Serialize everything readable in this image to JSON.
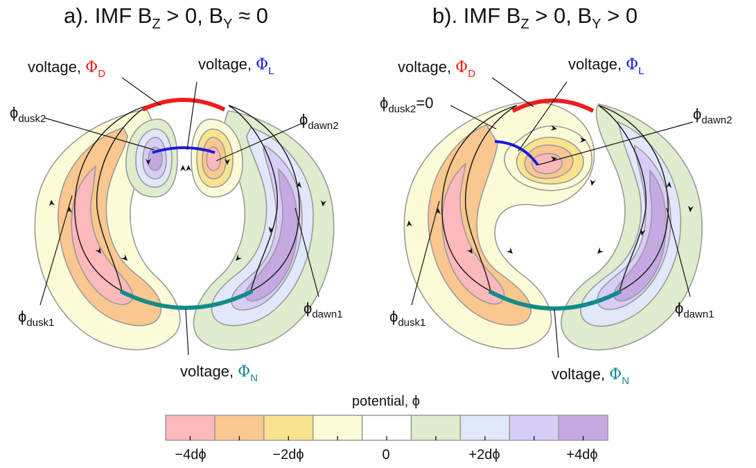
{
  "panels": [
    {
      "title_main": "a). IMF B",
      "title_sub1": "Z",
      "title_mid": " > 0, B",
      "title_sub2": "Y",
      "title_end": " ≈ 0",
      "voltage_d_prefix": "voltage, ",
      "voltage_d_symbol": "Φ",
      "voltage_d_sub": "D",
      "voltage_l_prefix": "voltage, ",
      "voltage_l_symbol": "Φ",
      "voltage_l_sub": "L",
      "voltage_n_prefix": "voltage, ",
      "voltage_n_symbol": "Φ",
      "voltage_n_sub": "N",
      "phi_dusk2": "ϕ",
      "phi_dusk2_sub": "dusk2",
      "phi_dusk2_suffix": "",
      "phi_dawn2": "ϕ",
      "phi_dawn2_sub": "dawn2",
      "phi_dusk1": "ϕ",
      "phi_dusk1_sub": "dusk1",
      "phi_dawn1": "ϕ",
      "phi_dawn1_sub": "dawn1"
    },
    {
      "title_main": "b). IMF B",
      "title_sub1": "Z",
      "title_mid": " > 0,  B",
      "title_sub2": "Y",
      "title_end": " > 0",
      "voltage_d_prefix": "voltage, ",
      "voltage_d_symbol": "Φ",
      "voltage_d_sub": "D",
      "voltage_l_prefix": "voltage, ",
      "voltage_l_symbol": "Φ",
      "voltage_l_sub": "L",
      "voltage_n_prefix": "voltage, ",
      "voltage_n_symbol": "Φ",
      "voltage_n_sub": "N",
      "phi_dusk2": "ϕ",
      "phi_dusk2_sub": "dusk2",
      "phi_dusk2_suffix": "=0",
      "phi_dawn2": "ϕ",
      "phi_dawn2_sub": "dawn2",
      "phi_dusk1": "ϕ",
      "phi_dusk1_sub": "dusk1",
      "phi_dawn1": "ϕ",
      "phi_dawn1_sub": "dawn1"
    }
  ],
  "colorbar": {
    "title": "potential, ϕ",
    "levels": [
      "#fdb9bb",
      "#f9c78f",
      "#fae38f",
      "#fbfbd7",
      "#ffffff",
      "#dfeccd",
      "#e0e8f9",
      "#d7cdf8",
      "#c6a9e2"
    ],
    "tick_labels": [
      "−4dϕ",
      "−2dϕ",
      "0",
      "+2dϕ",
      "+4dϕ"
    ]
  },
  "colors": {
    "phi_d": "#ee1c1c",
    "phi_l": "#1a1adf",
    "phi_n": "#138b8b",
    "contour_line": "#9a9a9a"
  }
}
